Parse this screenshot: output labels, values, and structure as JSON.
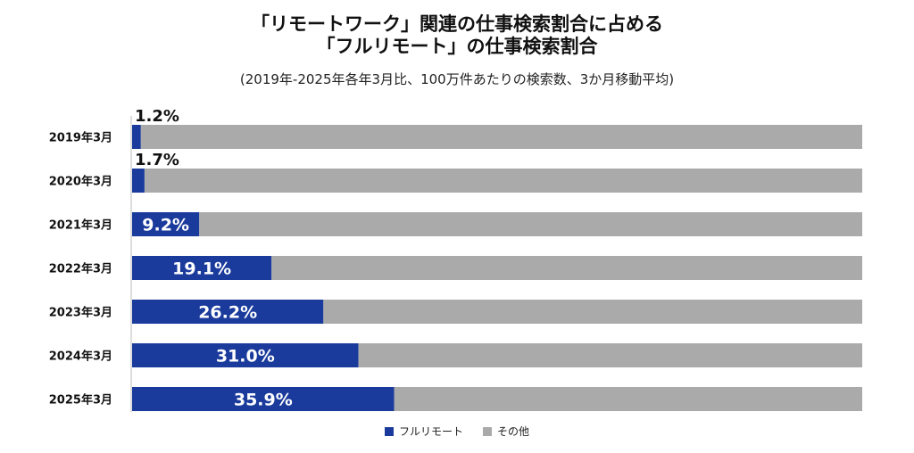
{
  "chart_data": {
    "type": "bar",
    "orientation": "horizontal",
    "stacked": true,
    "title": "「リモートワーク」関連の仕事検索割合に占める",
    "title_line2": "「フルリモート」の仕事検索割合",
    "subtitle": "(2019年-2025年各年3月比、100万件あたりの検索数、3か月移動平均)",
    "categories": [
      "2019年3月",
      "2020年3月",
      "2021年3月",
      "2022年3月",
      "2023年3月",
      "2024年3月",
      "2025年3月"
    ],
    "series": [
      {
        "name": "フルリモート",
        "color": "#1a3a9c",
        "values": [
          1.2,
          1.7,
          9.2,
          19.1,
          26.2,
          31.0,
          35.9
        ]
      },
      {
        "name": "その他",
        "color": "#aaaaaa",
        "values": [
          98.8,
          98.3,
          90.8,
          80.9,
          73.8,
          69.0,
          64.1
        ]
      }
    ],
    "data_labels": [
      "1.2%",
      "1.7%",
      "9.2%",
      "19.1%",
      "26.2%",
      "31.0%",
      "35.9%"
    ],
    "xlim": [
      0,
      100
    ],
    "grid": false,
    "legend_position": "bottom"
  }
}
